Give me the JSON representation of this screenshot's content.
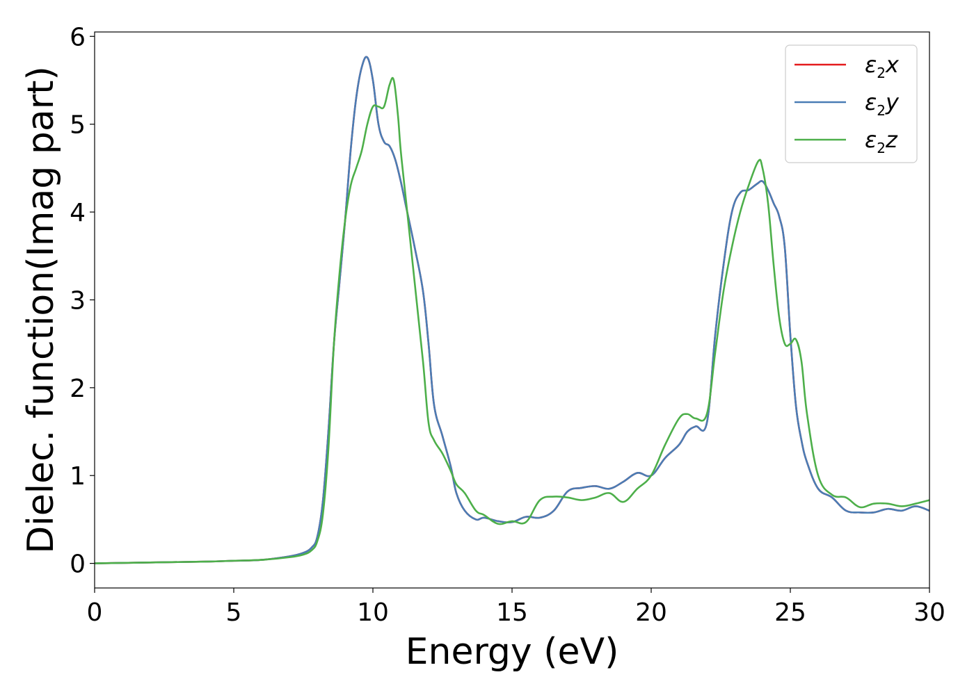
{
  "chart_data": {
    "type": "line",
    "title": "",
    "xlabel": "Energy (eV)",
    "ylabel": "Dielec. function(Imag part)",
    "xlim": [
      0,
      30
    ],
    "ylim": [
      -0.28,
      6.05
    ],
    "xticks": [
      0,
      5,
      10,
      15,
      20,
      25,
      30
    ],
    "yticks": [
      0,
      1,
      2,
      3,
      4,
      5,
      6
    ],
    "grid": false,
    "legend_position": "top-right",
    "series": [
      {
        "name": "ε2x",
        "base": "ε",
        "sub": "2",
        "axis": "x",
        "color": "#e41a1c",
        "x": [
          0,
          2,
          4,
          5,
          6,
          7,
          7.5,
          7.8,
          8.0,
          8.2,
          8.4,
          8.6,
          8.8,
          9.0,
          9.2,
          9.4,
          9.6,
          9.8,
          10.0,
          10.2,
          10.4,
          10.6,
          10.8,
          11.0,
          11.2,
          11.5,
          11.8,
          12.0,
          12.2,
          12.5,
          12.8,
          13.0,
          13.3,
          13.7,
          14.0,
          14.5,
          15.0,
          15.5,
          16.0,
          16.5,
          17.0,
          17.5,
          18.0,
          18.5,
          19.0,
          19.5,
          20.0,
          20.5,
          21.0,
          21.3,
          21.6,
          22.0,
          22.3,
          22.6,
          22.9,
          23.2,
          23.5,
          23.8,
          24.0,
          24.2,
          24.4,
          24.6,
          24.8,
          25.0,
          25.2,
          25.4,
          25.6,
          26.0,
          26.5,
          27.0,
          27.5,
          28.0,
          28.5,
          29.0,
          29.5,
          30.0
        ],
        "y": [
          0.0,
          0.01,
          0.02,
          0.03,
          0.04,
          0.08,
          0.12,
          0.18,
          0.3,
          0.7,
          1.5,
          2.5,
          3.2,
          3.9,
          4.7,
          5.3,
          5.65,
          5.76,
          5.5,
          5.0,
          4.8,
          4.75,
          4.6,
          4.35,
          4.05,
          3.6,
          3.1,
          2.5,
          1.8,
          1.45,
          1.1,
          0.8,
          0.6,
          0.5,
          0.52,
          0.48,
          0.47,
          0.53,
          0.52,
          0.6,
          0.82,
          0.86,
          0.88,
          0.85,
          0.93,
          1.03,
          1.0,
          1.2,
          1.35,
          1.5,
          1.56,
          1.6,
          2.6,
          3.4,
          4.0,
          4.22,
          4.25,
          4.32,
          4.35,
          4.25,
          4.1,
          3.95,
          3.6,
          2.6,
          1.8,
          1.4,
          1.15,
          0.85,
          0.75,
          0.6,
          0.58,
          0.58,
          0.62,
          0.6,
          0.65,
          0.6
        ]
      },
      {
        "name": "ε2y",
        "base": "ε",
        "sub": "2",
        "axis": "y",
        "color": "#4a7db5",
        "x": [
          0,
          2,
          4,
          5,
          6,
          7,
          7.5,
          7.8,
          8.0,
          8.2,
          8.4,
          8.6,
          8.8,
          9.0,
          9.2,
          9.4,
          9.6,
          9.8,
          10.0,
          10.2,
          10.4,
          10.6,
          10.8,
          11.0,
          11.2,
          11.5,
          11.8,
          12.0,
          12.2,
          12.5,
          12.8,
          13.0,
          13.3,
          13.7,
          14.0,
          14.5,
          15.0,
          15.5,
          16.0,
          16.5,
          17.0,
          17.5,
          18.0,
          18.5,
          19.0,
          19.5,
          20.0,
          20.5,
          21.0,
          21.3,
          21.6,
          22.0,
          22.3,
          22.6,
          22.9,
          23.2,
          23.5,
          23.8,
          24.0,
          24.2,
          24.4,
          24.6,
          24.8,
          25.0,
          25.2,
          25.4,
          25.6,
          26.0,
          26.5,
          27.0,
          27.5,
          28.0,
          28.5,
          29.0,
          29.5,
          30.0
        ],
        "y": [
          0.0,
          0.01,
          0.02,
          0.03,
          0.04,
          0.08,
          0.12,
          0.18,
          0.3,
          0.7,
          1.5,
          2.5,
          3.2,
          3.9,
          4.7,
          5.3,
          5.65,
          5.76,
          5.5,
          5.0,
          4.8,
          4.75,
          4.6,
          4.35,
          4.05,
          3.6,
          3.1,
          2.5,
          1.8,
          1.45,
          1.1,
          0.8,
          0.6,
          0.5,
          0.52,
          0.48,
          0.47,
          0.53,
          0.52,
          0.6,
          0.82,
          0.86,
          0.88,
          0.85,
          0.93,
          1.03,
          1.0,
          1.2,
          1.35,
          1.5,
          1.56,
          1.6,
          2.6,
          3.4,
          4.0,
          4.22,
          4.25,
          4.32,
          4.35,
          4.25,
          4.1,
          3.95,
          3.6,
          2.6,
          1.8,
          1.4,
          1.15,
          0.85,
          0.75,
          0.6,
          0.58,
          0.58,
          0.62,
          0.6,
          0.65,
          0.6
        ]
      },
      {
        "name": "ε2z",
        "base": "ε",
        "sub": "2",
        "axis": "z",
        "color": "#4daf4a",
        "x": [
          0,
          2,
          4,
          5,
          6,
          7,
          7.5,
          7.8,
          8.0,
          8.2,
          8.4,
          8.6,
          8.8,
          9.0,
          9.2,
          9.4,
          9.6,
          9.8,
          10.0,
          10.2,
          10.4,
          10.6,
          10.75,
          10.9,
          11.0,
          11.2,
          11.5,
          11.8,
          12.0,
          12.2,
          12.5,
          12.8,
          13.0,
          13.3,
          13.7,
          14.0,
          14.5,
          15.0,
          15.5,
          16.0,
          16.5,
          17.0,
          17.5,
          18.0,
          18.5,
          19.0,
          19.5,
          20.0,
          20.5,
          21.0,
          21.3,
          21.6,
          22.0,
          22.3,
          22.6,
          22.9,
          23.2,
          23.5,
          23.85,
          24.0,
          24.2,
          24.4,
          24.6,
          24.8,
          25.0,
          25.2,
          25.4,
          25.6,
          26.0,
          26.5,
          27.0,
          27.5,
          28.0,
          28.5,
          29.0,
          29.5,
          30.0
        ],
        "y": [
          0.0,
          0.01,
          0.02,
          0.03,
          0.04,
          0.07,
          0.1,
          0.15,
          0.25,
          0.55,
          1.3,
          2.5,
          3.3,
          3.9,
          4.3,
          4.5,
          4.7,
          5.0,
          5.2,
          5.2,
          5.2,
          5.45,
          5.5,
          5.1,
          4.7,
          4.1,
          3.2,
          2.3,
          1.6,
          1.4,
          1.25,
          1.05,
          0.9,
          0.8,
          0.6,
          0.55,
          0.45,
          0.48,
          0.47,
          0.72,
          0.76,
          0.75,
          0.72,
          0.75,
          0.8,
          0.7,
          0.85,
          1.0,
          1.35,
          1.65,
          1.7,
          1.65,
          1.7,
          2.4,
          3.1,
          3.6,
          4.0,
          4.3,
          4.58,
          4.5,
          4.1,
          3.4,
          2.8,
          2.5,
          2.5,
          2.55,
          2.3,
          1.7,
          1.0,
          0.78,
          0.75,
          0.64,
          0.68,
          0.68,
          0.65,
          0.68,
          0.72
        ]
      }
    ]
  }
}
